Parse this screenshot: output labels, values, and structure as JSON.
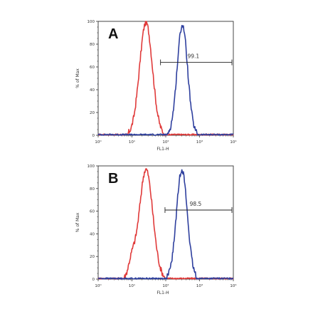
{
  "chart_data": [
    {
      "type": "line",
      "panel_label": "A",
      "xlabel": "FL1-H",
      "ylabel": "% of Max",
      "xscale": "log",
      "xlim": [
        1,
        10000
      ],
      "ylim": [
        0,
        100
      ],
      "x_tick_labels": [
        "10⁰",
        "10¹",
        "10²",
        "10³",
        "10⁴"
      ],
      "y_tick_labels": [
        "0",
        "20",
        "40",
        "60",
        "80",
        "100"
      ],
      "gate": {
        "label": "99.1",
        "x_start": 70,
        "x_end": 10000,
        "y": 64
      },
      "series": [
        {
          "color": "#e03a3a",
          "peak_x": 26,
          "peak_y": 99,
          "log_width": 0.19
        },
        {
          "color": "#2e3f9e",
          "peak_x": 310,
          "peak_y": 97,
          "log_width": 0.155
        }
      ]
    },
    {
      "type": "line",
      "panel_label": "B",
      "xlabel": "FL1-H",
      "ylabel": "% of Max",
      "xscale": "log",
      "xlim": [
        1,
        10000
      ],
      "ylim": [
        0,
        100
      ],
      "x_tick_labels": [
        "10⁰",
        "10¹",
        "10²",
        "10³",
        "10⁴"
      ],
      "y_tick_labels": [
        "0",
        "20",
        "40",
        "60",
        "80",
        "100"
      ],
      "gate": {
        "label": "98.5",
        "x_start": 95,
        "x_end": 10000,
        "y": 61
      },
      "series": [
        {
          "color": "#e03a3a",
          "peak_x": 26,
          "peak_y": 97,
          "log_width": 0.2,
          "shoulder": true
        },
        {
          "color": "#2e3f9e",
          "peak_x": 300,
          "peak_y": 97,
          "log_width": 0.16
        }
      ]
    }
  ]
}
